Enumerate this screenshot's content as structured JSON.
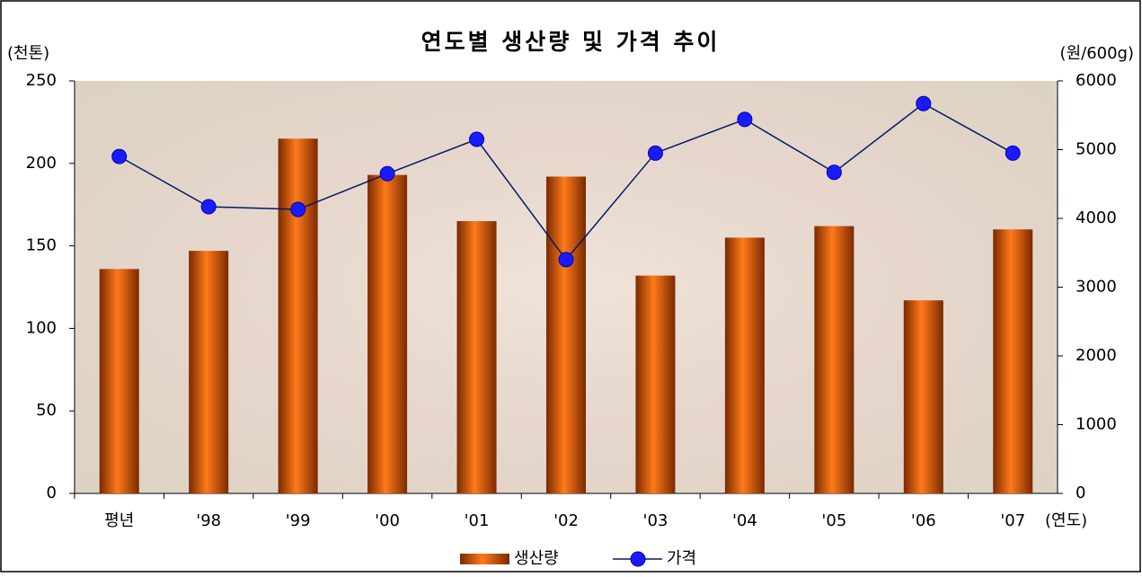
{
  "chart_data": {
    "type": "bar_line",
    "title": "연도별 생산량 및 가격 추이",
    "y_label": "(천톤)",
    "y2_label": "(원/600g)",
    "x_label": "(연도)",
    "categories": [
      "평년",
      "'98",
      "'99",
      "'00",
      "'01",
      "'02",
      "'03",
      "'04",
      "'05",
      "'06",
      "'07"
    ],
    "series": [
      {
        "name": "생산량",
        "type": "bar",
        "color": "#e86a10",
        "values": [
          136,
          147,
          215,
          193,
          165,
          192,
          132,
          155,
          162,
          117,
          160
        ]
      },
      {
        "name": "가격",
        "type": "line",
        "axis": "y2",
        "color": "#1a1aff",
        "values": [
          4900,
          4170,
          4130,
          4650,
          5150,
          3400,
          4950,
          5440,
          4670,
          5670,
          4950
        ]
      }
    ],
    "ylim": [
      0,
      250
    ],
    "yticks": [
      0,
      50,
      100,
      150,
      200,
      250
    ],
    "y2lim": [
      0,
      6000
    ],
    "y2ticks": [
      0,
      1000,
      2000,
      3000,
      4000,
      5000,
      6000
    ],
    "grid": false,
    "legend": "bottom"
  }
}
